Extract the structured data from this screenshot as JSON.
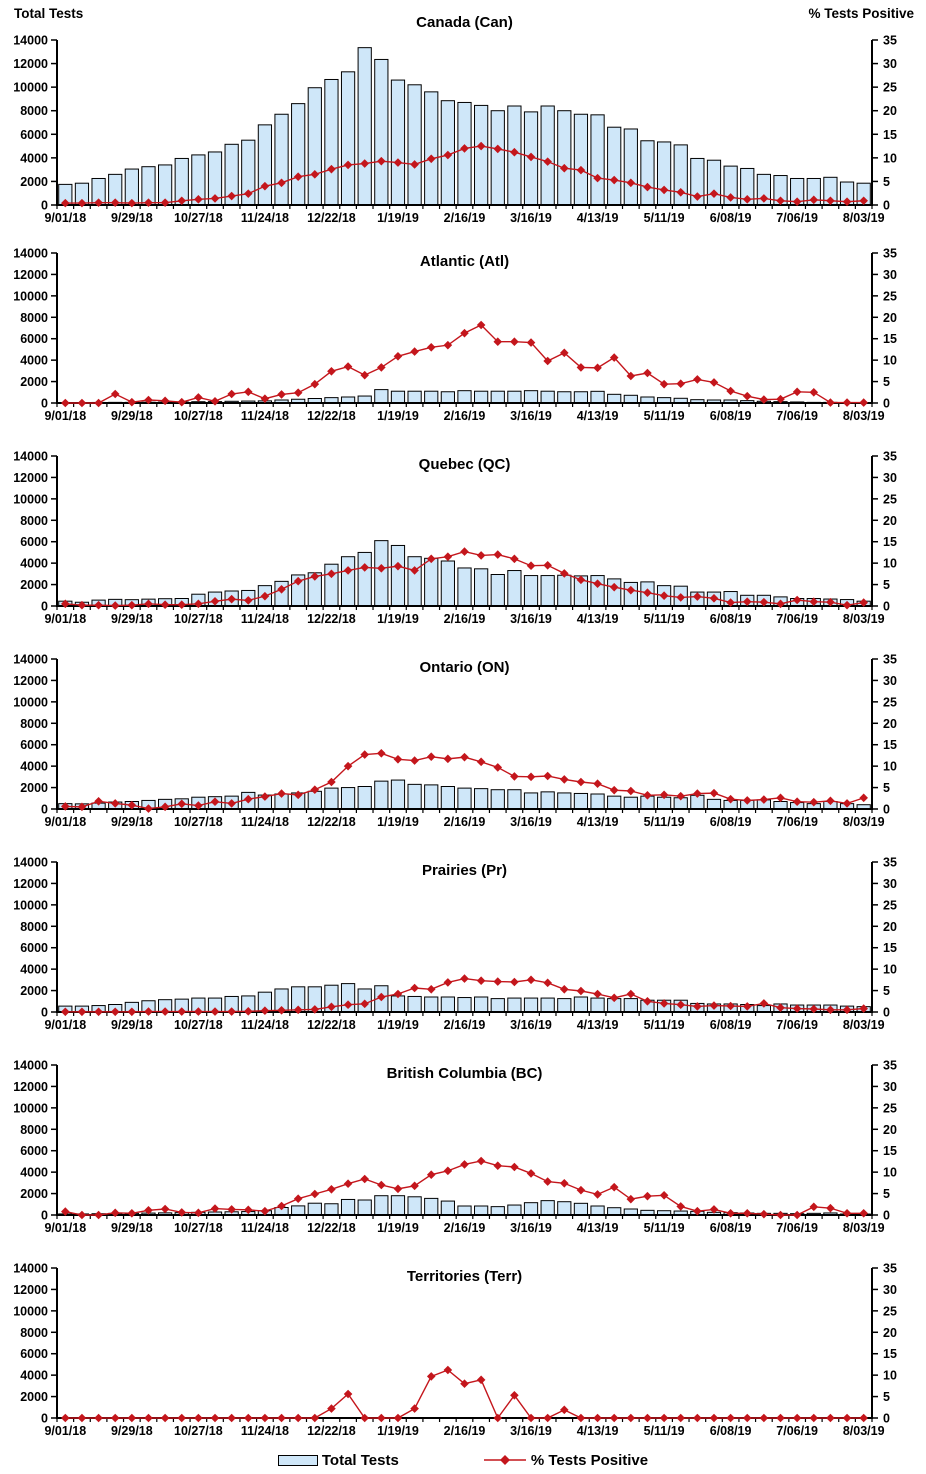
{
  "header": {
    "left_axis_title": "Total Tests",
    "right_axis_title": "% Tests Positive"
  },
  "legend": {
    "bar_label": "Total Tests",
    "line_label": "% Tests Positive"
  },
  "colors": {
    "bar_fill": "#cfe7f9",
    "bar_stroke": "#000000",
    "line": "#c4161c",
    "axis": "#000000",
    "text": "#000000",
    "background": "#ffffff"
  },
  "axes": {
    "y_left": {
      "title": "Total Tests",
      "min": 0,
      "max": 14000,
      "step": 2000
    },
    "y_right": {
      "title": "% Tests Positive",
      "min": 0,
      "max": 35,
      "step": 5
    },
    "x": {
      "n_points": 49,
      "label_every_n_weeks": 4,
      "tick_labels": [
        "9/01/18",
        "9/29/18",
        "10/27/18",
        "11/24/18",
        "12/22/18",
        "1/19/19",
        "2/16/19",
        "3/16/19",
        "4/13/19",
        "5/11/19",
        "6/08/19",
        "7/06/19",
        "8/03/19"
      ]
    }
  },
  "chart_data": [
    {
      "type": "bar+line",
      "title": "Canada (Can)",
      "series": [
        {
          "name": "Total Tests",
          "type": "bar",
          "axis": "left",
          "values": [
            1750,
            1850,
            2250,
            2600,
            3050,
            3250,
            3400,
            3950,
            4250,
            4500,
            5150,
            5500,
            6800,
            7700,
            8600,
            9950,
            10650,
            11300,
            13350,
            12350,
            10600,
            10200,
            9600,
            8850,
            8700,
            8450,
            8000,
            8400,
            7900,
            8400,
            8000,
            7700,
            7650,
            6600,
            6450,
            5450,
            5350,
            5100,
            3950,
            3800,
            3300,
            3100,
            2600,
            2500,
            2250,
            2250,
            2350,
            1950,
            1850
          ]
        },
        {
          "name": "% Tests Positive",
          "type": "line",
          "axis": "right",
          "values": [
            0.4,
            0.4,
            0.5,
            0.5,
            0.4,
            0.5,
            0.5,
            0.9,
            1.2,
            1.4,
            1.9,
            2.4,
            4.0,
            4.7,
            6.0,
            6.5,
            7.6,
            8.5,
            8.8,
            9.3,
            9.0,
            8.6,
            9.8,
            10.6,
            12.0,
            12.5,
            11.9,
            11.2,
            10.2,
            9.2,
            7.8,
            7.4,
            5.7,
            5.3,
            4.7,
            3.8,
            3.2,
            2.7,
            1.8,
            2.4,
            1.6,
            1.2,
            1.4,
            0.9,
            0.7,
            1.1,
            0.9,
            0.7,
            0.9
          ]
        }
      ]
    },
    {
      "type": "bar+line",
      "title": "Atlantic (Atl)",
      "series": [
        {
          "name": "Total Tests",
          "type": "bar",
          "axis": "left",
          "values": [
            40,
            40,
            50,
            60,
            60,
            70,
            80,
            90,
            120,
            130,
            160,
            180,
            200,
            280,
            350,
            420,
            500,
            560,
            650,
            1250,
            1100,
            1100,
            1100,
            1050,
            1150,
            1100,
            1100,
            1100,
            1150,
            1100,
            1050,
            1050,
            1090,
            810,
            720,
            560,
            500,
            440,
            310,
            280,
            280,
            220,
            160,
            125,
            95,
            60,
            60,
            30,
            30
          ]
        },
        {
          "name": "% Tests Positive",
          "type": "line",
          "axis": "right",
          "values": [
            0,
            0,
            0,
            2.1,
            0.2,
            0.7,
            0.5,
            0.2,
            1.3,
            0.4,
            2.1,
            2.6,
            1.0,
            2.0,
            2.4,
            4.4,
            7.4,
            8.5,
            6.5,
            8.3,
            10.9,
            12.0,
            13.0,
            13.5,
            16.3,
            18.2,
            14.3,
            14.3,
            14.1,
            9.8,
            11.7,
            8.3,
            8.2,
            10.6,
            6.3,
            7.0,
            4.4,
            4.5,
            5.5,
            4.8,
            2.8,
            1.6,
            0.8,
            0.9,
            2.6,
            2.5,
            0.1,
            0.1,
            0.1
          ]
        }
      ]
    },
    {
      "type": "bar+line",
      "title": "Quebec (QC)",
      "series": [
        {
          "name": "Total Tests",
          "type": "bar",
          "axis": "left",
          "values": [
            450,
            350,
            550,
            620,
            590,
            640,
            680,
            700,
            1100,
            1300,
            1400,
            1450,
            1900,
            2300,
            2900,
            3100,
            3900,
            4600,
            5000,
            6100,
            5650,
            4600,
            4450,
            4200,
            3550,
            3470,
            2940,
            3310,
            2840,
            2840,
            2870,
            2810,
            2840,
            2530,
            2200,
            2250,
            1900,
            1850,
            1300,
            1300,
            1350,
            1000,
            1000,
            850,
            700,
            700,
            650,
            600,
            450
          ]
        },
        {
          "name": "% Tests Positive",
          "type": "line",
          "axis": "right",
          "values": [
            0.5,
            0.2,
            0.2,
            0.1,
            0.2,
            0.5,
            0.3,
            0.3,
            0.5,
            1.1,
            1.6,
            1.3,
            2.3,
            3.9,
            5.8,
            6.9,
            7.5,
            8.3,
            9.0,
            8.8,
            9.3,
            8.3,
            11.0,
            11.5,
            12.7,
            11.8,
            12.0,
            11.0,
            9.4,
            9.5,
            7.6,
            6.1,
            5.2,
            4.4,
            3.7,
            3.1,
            2.4,
            2.0,
            2.2,
            1.8,
            0.8,
            1.0,
            0.9,
            0.5,
            1.4,
            1.0,
            0.9,
            0.2,
            0.8
          ]
        }
      ]
    },
    {
      "type": "bar+line",
      "title": "Ontario (ON)",
      "series": [
        {
          "name": "Total Tests",
          "type": "bar",
          "axis": "left",
          "values": [
            500,
            480,
            550,
            650,
            700,
            800,
            900,
            950,
            1100,
            1150,
            1200,
            1550,
            1300,
            1400,
            1500,
            1650,
            1950,
            2000,
            2100,
            2600,
            2700,
            2300,
            2250,
            2100,
            1950,
            1900,
            1800,
            1800,
            1500,
            1600,
            1500,
            1450,
            1400,
            1200,
            1100,
            1200,
            1100,
            1050,
            1280,
            900,
            800,
            800,
            850,
            700,
            600,
            500,
            700,
            500,
            400
          ]
        },
        {
          "name": "% Tests Positive",
          "type": "line",
          "axis": "right",
          "values": [
            0.6,
            0.5,
            1.8,
            1.3,
            0.9,
            0.1,
            0.5,
            1.2,
            0.8,
            1.7,
            1.3,
            2.3,
            2.9,
            3.6,
            3.3,
            4.5,
            6.3,
            10.0,
            12.7,
            13.0,
            11.6,
            11.3,
            12.2,
            11.7,
            12.1,
            11.0,
            9.7,
            7.6,
            7.5,
            7.7,
            6.9,
            6.3,
            5.9,
            4.4,
            4.2,
            3.2,
            3.3,
            3.0,
            3.6,
            3.7,
            2.3,
            2.0,
            2.2,
            2.6,
            1.7,
            1.6,
            1.9,
            1.3,
            2.6
          ]
        }
      ]
    },
    {
      "type": "bar+line",
      "title": "Prairies (Pr)",
      "series": [
        {
          "name": "Total Tests",
          "type": "bar",
          "axis": "left",
          "values": [
            550,
            550,
            600,
            700,
            900,
            1050,
            1150,
            1200,
            1300,
            1300,
            1450,
            1500,
            1850,
            2150,
            2350,
            2350,
            2500,
            2650,
            2150,
            2450,
            1500,
            1450,
            1400,
            1400,
            1350,
            1400,
            1250,
            1300,
            1300,
            1300,
            1250,
            1400,
            1300,
            1250,
            1250,
            1100,
            1100,
            1100,
            800,
            750,
            750,
            700,
            600,
            750,
            650,
            650,
            650,
            550,
            500
          ]
        },
        {
          "name": "% Tests Positive",
          "type": "line",
          "axis": "right",
          "values": [
            0.05,
            0.05,
            0.05,
            0.05,
            0.05,
            0.1,
            0.1,
            0.1,
            0.1,
            0.1,
            0.1,
            0.15,
            0.3,
            0.4,
            0.5,
            0.6,
            1.2,
            1.7,
            1.9,
            3.5,
            4.2,
            5.6,
            5.3,
            6.9,
            7.8,
            7.3,
            7.1,
            7.0,
            7.5,
            6.8,
            5.3,
            4.9,
            4.2,
            3.3,
            4.2,
            2.5,
            2.0,
            1.7,
            1.3,
            1.5,
            1.4,
            1.3,
            2.0,
            1.0,
            0.8,
            0.7,
            0.5,
            0.5,
            0.8
          ]
        }
      ]
    },
    {
      "type": "bar+line",
      "title": "British Columbia (BC)",
      "series": [
        {
          "name": "Total Tests",
          "type": "bar",
          "axis": "left",
          "values": [
            100,
            100,
            120,
            150,
            150,
            180,
            200,
            220,
            250,
            280,
            300,
            320,
            400,
            700,
            850,
            1100,
            1050,
            1450,
            1400,
            1800,
            1800,
            1700,
            1550,
            1300,
            840,
            840,
            780,
            930,
            1150,
            1340,
            1240,
            1090,
            840,
            680,
            560,
            435,
            400,
            370,
            340,
            250,
            220,
            190,
            155,
            155,
            125,
            155,
            190,
            90,
            90
          ]
        },
        {
          "name": "% Tests Positive",
          "type": "line",
          "axis": "right",
          "values": [
            0.8,
            0,
            0,
            0.5,
            0.4,
            1.1,
            1.4,
            0.6,
            0.5,
            1.5,
            1.3,
            1.2,
            0.9,
            2.1,
            3.8,
            4.9,
            6.0,
            7.3,
            8.4,
            7.0,
            6.1,
            6.8,
            9.4,
            10.3,
            11.8,
            12.6,
            11.5,
            11.2,
            9.7,
            7.8,
            7.4,
            5.8,
            4.8,
            6.5,
            3.7,
            4.4,
            4.6,
            2.0,
            0.9,
            1.3,
            0.4,
            0.4,
            0.2,
            0,
            0,
            1.9,
            1.6,
            0.4,
            0.4
          ]
        }
      ]
    },
    {
      "type": "bar+line",
      "title": "Territories (Terr)",
      "series": [
        {
          "name": "Total Tests",
          "type": "bar",
          "axis": "left",
          "values": [
            0,
            0,
            0,
            0,
            0,
            0,
            0,
            0,
            0,
            0,
            0,
            0,
            0,
            0,
            0,
            0,
            0,
            0,
            0,
            0,
            0,
            0,
            0,
            0,
            0,
            0,
            0,
            0,
            0,
            0,
            0,
            0,
            0,
            0,
            0,
            0,
            0,
            0,
            0,
            0,
            0,
            0,
            0,
            0,
            0,
            0,
            0,
            0,
            0
          ]
        },
        {
          "name": "% Tests Positive",
          "type": "line",
          "axis": "right",
          "values": [
            0,
            0,
            0,
            0,
            0,
            0,
            0,
            0,
            0,
            0,
            0,
            0,
            0,
            0,
            0,
            0,
            2.2,
            5.6,
            0,
            0,
            0,
            2.2,
            9.7,
            11.2,
            8.0,
            8.9,
            0,
            5.3,
            0,
            0,
            1.9,
            0,
            0,
            0,
            0,
            0,
            0,
            0,
            0,
            0,
            0,
            0,
            0,
            0,
            0,
            0,
            0,
            0,
            0
          ]
        }
      ]
    }
  ]
}
